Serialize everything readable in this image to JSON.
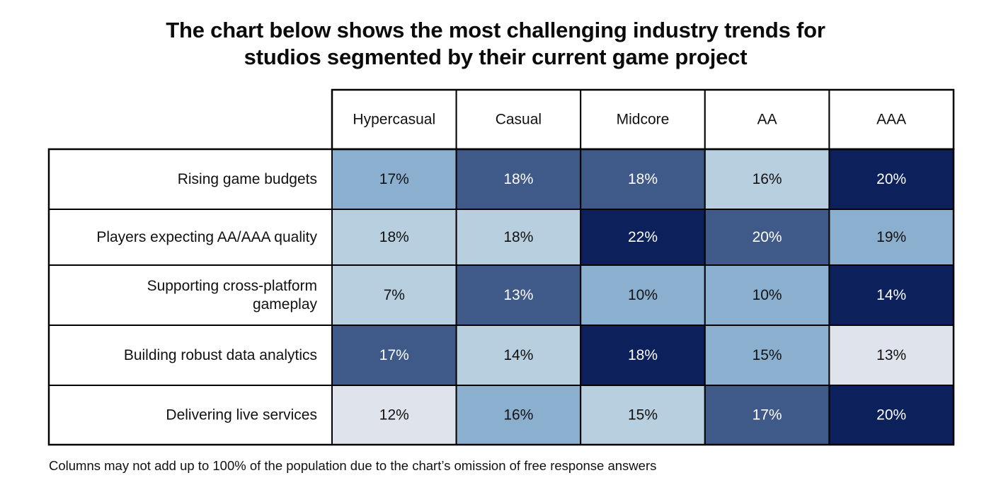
{
  "title_lines": [
    "The chart below shows the most challenging industry trends for",
    "studios segmented by their current game project"
  ],
  "footnote": "Columns may not add up to 100% of the population due to the chart’s omission of free response answers",
  "colors": {
    "level_1": "#dfe3ec",
    "level_2": "#b8cfe0",
    "level_3": "#8bb0cf",
    "level_4": "#3f5989",
    "level_5": "#0c205c",
    "border": "#000000",
    "text_dark": "#111111",
    "text_light": "#ffffff"
  },
  "chart_data": {
    "type": "heatmap",
    "title": "The chart below shows the most challenging industry trends for studios segmented by their current game project",
    "columns": [
      "Hypercasual",
      "Casual",
      "Midcore",
      "AA",
      "AAA"
    ],
    "rows": [
      {
        "label": [
          "Rising game budgets"
        ],
        "values": [
          17,
          18,
          18,
          16,
          20
        ],
        "levels": [
          3,
          4,
          4,
          2,
          5
        ]
      },
      {
        "label": [
          "Players expecting AA/AAA quality"
        ],
        "values": [
          18,
          18,
          22,
          20,
          19
        ],
        "levels": [
          2,
          2,
          5,
          4,
          3
        ]
      },
      {
        "label": [
          "Supporting cross-platform",
          "gameplay"
        ],
        "values": [
          7,
          13,
          10,
          10,
          14
        ],
        "levels": [
          2,
          4,
          3,
          3,
          5
        ]
      },
      {
        "label": [
          "Building robust data analytics"
        ],
        "values": [
          17,
          14,
          18,
          15,
          13
        ],
        "levels": [
          4,
          2,
          5,
          3,
          1
        ]
      },
      {
        "label": [
          "Delivering live services"
        ],
        "values": [
          12,
          16,
          15,
          17,
          20
        ],
        "levels": [
          1,
          3,
          2,
          4,
          5
        ]
      }
    ],
    "value_suffix": "%"
  }
}
